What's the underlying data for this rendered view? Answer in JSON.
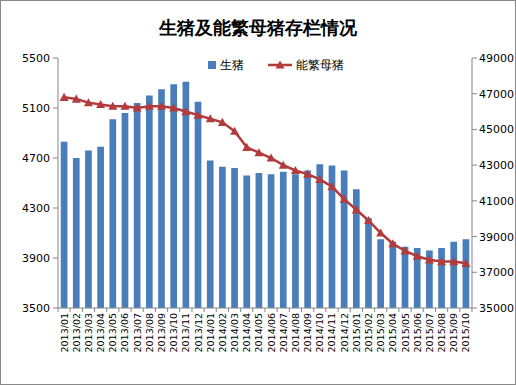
{
  "chart_data": {
    "type": "bar",
    "title": "生猪及能繁母猪存栏情况",
    "categories": [
      "2013/01",
      "2013/02",
      "2013/03",
      "2013/04",
      "2013/05",
      "2013/06",
      "2013/07",
      "2013/08",
      "2013/09",
      "2013/10",
      "2013/11",
      "2013/12",
      "2014/01",
      "2014/02",
      "2014/03",
      "2014/04",
      "2014/05",
      "2014/06",
      "2014/07",
      "2014/08",
      "2014/09",
      "2014/10",
      "2014/11",
      "2014/12",
      "2015/01",
      "2015/02",
      "2015/03",
      "2015/04",
      "2015/05",
      "2015/06",
      "2015/07",
      "2015/08",
      "2015/09",
      "2015/10"
    ],
    "series": [
      {
        "name": "生猪",
        "type": "bar",
        "color": "#4a7ebb",
        "values": [
          4830,
          4700,
          4760,
          4790,
          5010,
          5060,
          5140,
          5200,
          5250,
          5290,
          5310,
          5150,
          4680,
          4630,
          4620,
          4560,
          4580,
          4570,
          4590,
          4570,
          4600,
          4650,
          4640,
          4600,
          4450,
          4220,
          4050,
          4030,
          3990,
          3980,
          3960,
          3980,
          4030,
          4050
        ]
      },
      {
        "name": "能繁母猪",
        "type": "line",
        "axis": "y2",
        "color": "#b33b3b",
        "marker": "triangle",
        "values": [
          46800,
          46700,
          46500,
          46400,
          46300,
          46300,
          46200,
          46300,
          46300,
          46200,
          46000,
          45800,
          45600,
          45400,
          44900,
          44000,
          43700,
          43400,
          43000,
          42700,
          42500,
          42200,
          41800,
          41100,
          40500,
          39900,
          39200,
          38600,
          38200,
          37900,
          37700,
          37600,
          37600,
          37500
        ]
      }
    ],
    "ylim": [
      3500,
      5500
    ],
    "yticks": [
      3500,
      3900,
      4300,
      4700,
      5100,
      5500
    ],
    "y2lim": [
      35000,
      49000
    ],
    "y2ticks": [
      35000,
      37000,
      39000,
      41000,
      43000,
      45000,
      47000,
      49000
    ],
    "grid": false,
    "legend": "top"
  }
}
